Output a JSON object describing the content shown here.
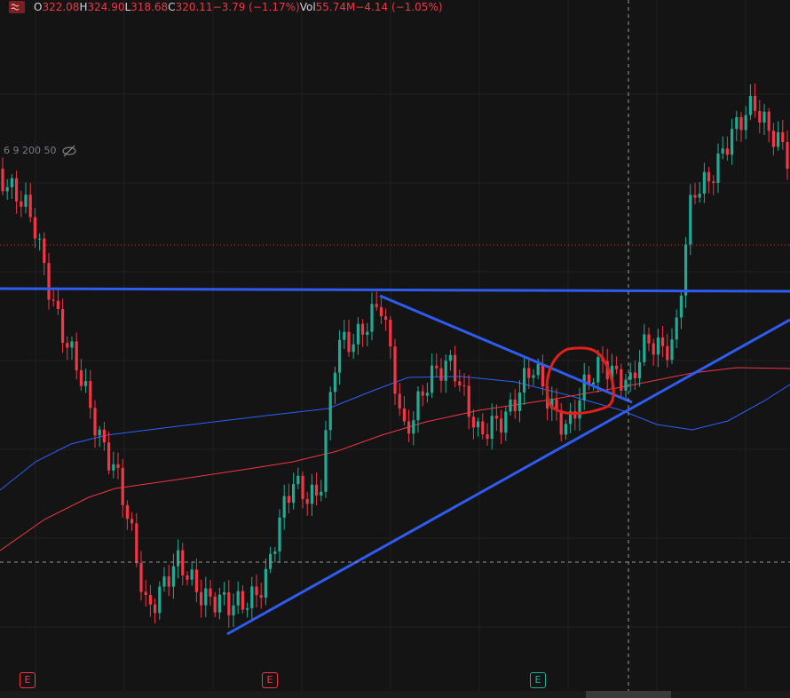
{
  "header": {
    "items": [
      {
        "label": "O",
        "value": "322.08"
      },
      {
        "label": "H",
        "value": "324.90"
      },
      {
        "label": "L",
        "value": "318.68"
      },
      {
        "label": "C",
        "value": "320.11"
      }
    ],
    "change": "−3.79 (−1.17%)",
    "volume_label": "Vol",
    "volume": "55.74M",
    "volume_change": "−4.14 (−1.05%)"
  },
  "indicator": "6 9 200 50",
  "earnings_markers": [
    "E",
    "E",
    "E"
  ]
}
